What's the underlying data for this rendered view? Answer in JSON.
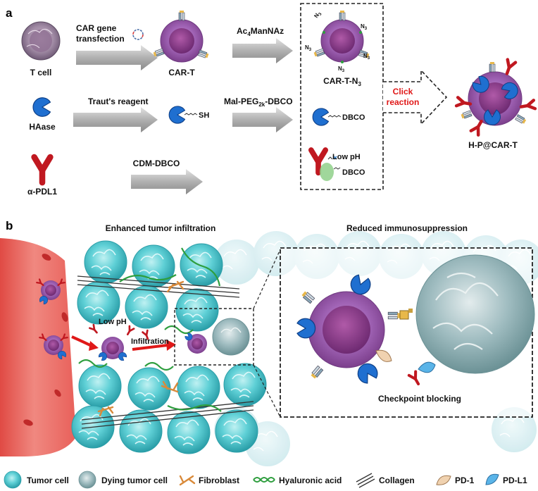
{
  "panel_a": {
    "letter": "a",
    "t_cell": "T cell",
    "car_gene": [
      "CAR gene",
      "transfection"
    ],
    "car_t": "CAR-T",
    "ac4mannaz_pre": "Ac",
    "ac4mannaz_sub": "4",
    "ac4mannaz_post": "ManNAz",
    "car_t_n3_pre": "CAR-T-N",
    "car_t_n3_sub": "3",
    "n3_pre": "N",
    "n3_sub": "3",
    "haase": "HAase",
    "trauts": "Traut's reagent",
    "sh": "SH",
    "mal_peg_pre": "Mal-PEG",
    "mal_peg_sub": "2k",
    "mal_peg_post": "-DBCO",
    "dbco": "DBCO",
    "click": [
      "Click",
      "reaction"
    ],
    "hp_car_t": "H-P@CAR-T",
    "alpha_pdl1": "α-PDL1",
    "cdm_dbco": "CDM-DBCO",
    "low_ph": "Low pH",
    "dbco2": "DBCO"
  },
  "panel_b": {
    "letter": "b",
    "enhanced": "Enhanced tumor infiltration",
    "reduced": "Reduced immunosuppression",
    "low_ph": "Low pH",
    "infiltration": "Infiltration",
    "checkpoint": "Checkpoint blocking"
  },
  "legend": {
    "tumor_cell": "Tumor cell",
    "dying_tumor_cell": "Dying tumor cell",
    "fibroblast": "Fibroblast",
    "hyaluronic_acid": "Hyaluronic acid",
    "collagen": "Collagen",
    "pd1": "PD-1",
    "pdl1": "PD-L1"
  },
  "colors": {
    "tumor": "#3fc3cc",
    "dying": "#9fbcc0",
    "cell_purple": "#b678c6",
    "cell_core": "#8a3f8e",
    "haase_blue": "#1f6fd0",
    "antibody_red": "#c01820",
    "vessel": "#e8605a",
    "fibroblast": "#d98a3a",
    "ha_green": "#2e9e3e",
    "pd1": "#f0d2b0",
    "pdl1": "#5ab4e8",
    "click_red": "#e01818"
  }
}
